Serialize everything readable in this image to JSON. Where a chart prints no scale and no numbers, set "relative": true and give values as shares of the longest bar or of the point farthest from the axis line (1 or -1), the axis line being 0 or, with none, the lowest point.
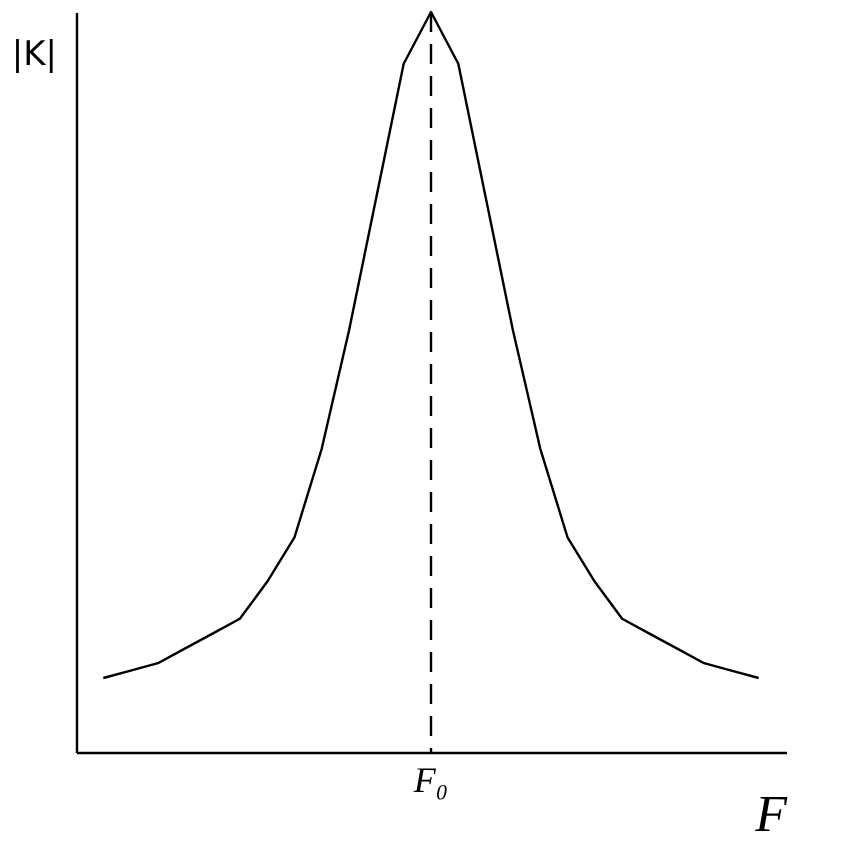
{
  "chart_data": {
    "type": "line",
    "relative": true,
    "xlabel": "F",
    "ylabel": "|K|",
    "categories": [
      null,
      null,
      null,
      null,
      null,
      null,
      null,
      null,
      null,
      null,
      null,
      null,
      null,
      null,
      null,
      null,
      null,
      null,
      null,
      null,
      null,
      null,
      null,
      null,
      null
    ],
    "series": [
      {
        "color": "#000000",
        "values": [
          0.1,
          0.11,
          0.12,
          0.14,
          0.16,
          0.18,
          0.23,
          0.29,
          0.41,
          0.57,
          0.75,
          0.93,
          1.0,
          0.93,
          0.75,
          0.57,
          0.41,
          0.29,
          0.23,
          0.18,
          0.16,
          0.14,
          0.12,
          0.11,
          0.1
        ]
      }
    ],
    "ref_lines": [
      {
        "axis": "x",
        "label": "F₀",
        "line_style": "dashed",
        "color": "#000000"
      }
    ],
    "grid": false,
    "marker": "none",
    "line_style": "solid"
  }
}
